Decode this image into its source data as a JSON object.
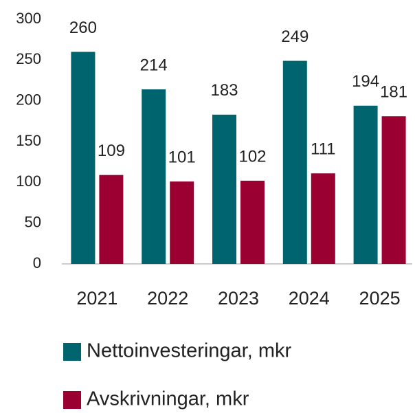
{
  "chart_data": {
    "type": "bar",
    "categories": [
      "2021",
      "2022",
      "2023",
      "2024",
      "2025"
    ],
    "series": [
      {
        "name": "Nettoinvesteringar, mkr",
        "color": "#00646e",
        "values": [
          260,
          214,
          183,
          249,
          194
        ]
      },
      {
        "name": "Avskrivningar, mkr",
        "color": "#9b0033",
        "values": [
          109,
          101,
          102,
          111,
          181
        ]
      }
    ],
    "ylim": [
      0,
      300
    ],
    "yticks": [
      0,
      50,
      100,
      150,
      200,
      250,
      300
    ],
    "grid": false
  }
}
